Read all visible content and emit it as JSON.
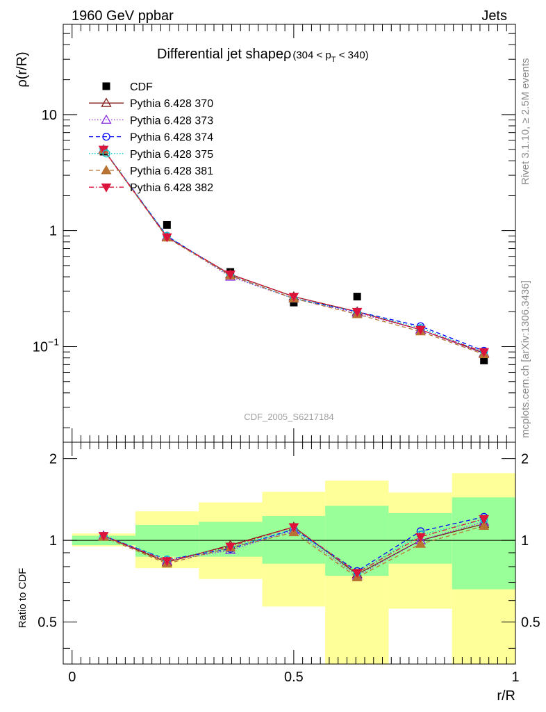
{
  "header": {
    "left": "1960 GeV ppbar",
    "right": "Jets"
  },
  "side_labels": {
    "rivet": "Rivet 3.1.10, ≥ 2.5M events",
    "mcplots": "mcplots.cern.ch [arXiv:1306.3436]"
  },
  "colors": {
    "data": "#000000",
    "band_outer": "#ffff99",
    "band_inner": "#99ff99",
    "p370": "#7f1a1a",
    "p373": "#8a2be2",
    "p374": "#0000ff",
    "p375": "#00cccc",
    "p381": "#b87333",
    "p382": "#dc143c"
  },
  "chart_data": [
    {
      "type": "line",
      "panel": "main",
      "title": "Differential jet shapeρ",
      "title_suffix": "(304 < p",
      "title_sub": "T",
      "title_end": " < 340)",
      "ylabel": "ρ(r/R)",
      "xlim": [
        -0.02,
        1.0
      ],
      "ylim": [
        0.015,
        60
      ],
      "yscale": "log",
      "yticks": [
        {
          "v": 0.1,
          "label": "10",
          "exp": "−1"
        },
        {
          "v": 1,
          "label": "1"
        },
        {
          "v": 10,
          "label": "10"
        }
      ],
      "watermark": "CDF_2005_S6217184",
      "legend_position": "top-left",
      "x": [
        0.071,
        0.214,
        0.357,
        0.5,
        0.643,
        0.786,
        0.929
      ],
      "series": [
        {
          "name": "CDF",
          "key": "cdf",
          "values": [
            4.8,
            1.12,
            0.44,
            0.24,
            0.27,
            0.14,
            0.076
          ]
        },
        {
          "name": "Pythia 6.428 370",
          "key": "p370",
          "values": [
            5.0,
            0.88,
            0.42,
            0.27,
            0.2,
            0.14,
            0.088
          ]
        },
        {
          "name": "Pythia 6.428 373",
          "key": "p373",
          "values": [
            5.0,
            0.89,
            0.4,
            0.26,
            0.195,
            0.14,
            0.087
          ]
        },
        {
          "name": "Pythia 6.428 374",
          "key": "p374",
          "values": [
            5.0,
            0.9,
            0.41,
            0.26,
            0.2,
            0.15,
            0.092
          ]
        },
        {
          "name": "Pythia 6.428 375",
          "key": "p375",
          "values": [
            5.0,
            0.9,
            0.41,
            0.26,
            0.2,
            0.145,
            0.09
          ]
        },
        {
          "name": "Pythia 6.428 381",
          "key": "p381",
          "values": [
            4.95,
            0.87,
            0.41,
            0.26,
            0.19,
            0.135,
            0.086
          ]
        },
        {
          "name": "Pythia 6.428 382",
          "key": "p382",
          "values": [
            5.0,
            0.88,
            0.42,
            0.27,
            0.2,
            0.14,
            0.09
          ]
        }
      ]
    },
    {
      "type": "line",
      "panel": "ratio",
      "ylabel": "Ratio to CDF",
      "xlabel": "r/R",
      "xlim": [
        -0.02,
        1.0
      ],
      "ylim": [
        0.35,
        2.3
      ],
      "yscale": "log",
      "yticks": [
        {
          "v": 0.5,
          "label": "0.5"
        },
        {
          "v": 1,
          "label": "1"
        },
        {
          "v": 2,
          "label": "2"
        }
      ],
      "xticks": [
        {
          "v": 0,
          "label": "0"
        },
        {
          "v": 0.5,
          "label": "0.5"
        },
        {
          "v": 1,
          "label": "1"
        }
      ],
      "bins": [
        0.0,
        0.143,
        0.286,
        0.429,
        0.571,
        0.714,
        0.857,
        1.0
      ],
      "band_inner": [
        [
          0.96,
          1.04
        ],
        [
          0.87,
          1.14
        ],
        [
          0.87,
          1.17
        ],
        [
          0.82,
          1.23
        ],
        [
          0.74,
          1.34
        ],
        [
          0.82,
          1.26
        ],
        [
          0.66,
          1.44
        ]
      ],
      "band_outer": [
        [
          0.95,
          1.06
        ],
        [
          0.79,
          1.28
        ],
        [
          0.72,
          1.38
        ],
        [
          0.57,
          1.51
        ],
        [
          0.35,
          1.66
        ],
        [
          0.56,
          1.5
        ],
        [
          0.35,
          1.77
        ]
      ],
      "x": [
        0.071,
        0.214,
        0.357,
        0.5,
        0.643,
        0.786,
        0.929
      ],
      "series": [
        {
          "name": "Pythia 6.428 370",
          "key": "p370",
          "values": [
            1.04,
            0.83,
            0.96,
            1.12,
            0.75,
            1.0,
            1.15
          ]
        },
        {
          "name": "Pythia 6.428 373",
          "key": "p373",
          "values": [
            1.04,
            0.84,
            0.92,
            1.09,
            0.74,
            1.0,
            1.17
          ]
        },
        {
          "name": "Pythia 6.428 374",
          "key": "p374",
          "values": [
            1.04,
            0.85,
            0.93,
            1.1,
            0.77,
            1.08,
            1.22
          ]
        },
        {
          "name": "Pythia 6.428 375",
          "key": "p375",
          "values": [
            1.04,
            0.85,
            0.94,
            1.1,
            0.76,
            1.05,
            1.19
          ]
        },
        {
          "name": "Pythia 6.428 381",
          "key": "p381",
          "values": [
            1.03,
            0.82,
            0.94,
            1.07,
            0.73,
            0.97,
            1.13
          ]
        },
        {
          "name": "Pythia 6.428 382",
          "key": "p382",
          "values": [
            1.04,
            0.84,
            0.95,
            1.12,
            0.76,
            1.03,
            1.2
          ]
        }
      ]
    }
  ]
}
